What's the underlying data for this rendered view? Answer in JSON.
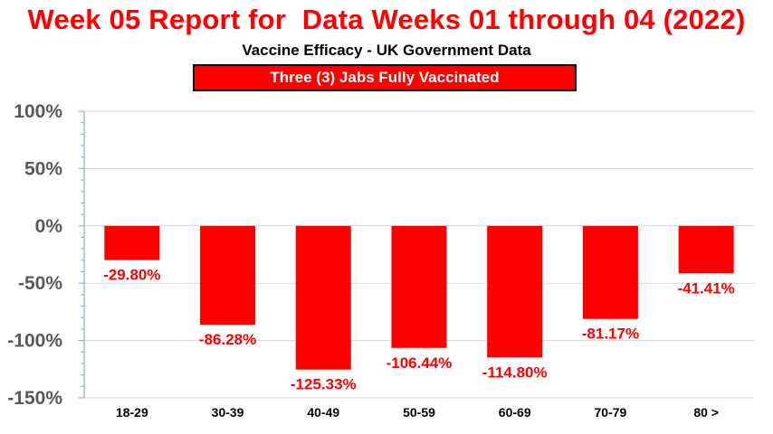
{
  "title": "Week 05 Report for  Data Weeks 01 through 04 (2022)",
  "subtitle": "Vaccine Efficacy - UK Government Data",
  "banner": "Three (3) Jabs Fully Vaccinated",
  "colors": {
    "bar": "#ff0000",
    "label": "#ff0000",
    "title": "#ff0000",
    "grid": "#d9d9d9",
    "axis": "#8eaacb"
  },
  "chart_data": {
    "type": "bar",
    "categories": [
      "18-29",
      "30-39",
      "40-49",
      "50-59",
      "60-69",
      "70-79",
      "80 >"
    ],
    "values": [
      -29.8,
      -86.28,
      -125.33,
      -106.44,
      -114.8,
      -81.17,
      -41.41
    ],
    "data_labels": [
      "-29.80%",
      "-86.28%",
      "-125.33%",
      "-106.44%",
      "-114.80%",
      "-81.17%",
      "-41.41%"
    ],
    "title": "Week 05 Report for  Data Weeks 01 through 04 (2022)",
    "subtitle": "Vaccine Efficacy - UK Government Data",
    "ylim": [
      -150,
      100
    ],
    "yticks": [
      100,
      50,
      0,
      -50,
      -100,
      -150
    ],
    "ytick_labels": [
      "100%",
      "50%",
      "0%",
      "-50%",
      "-100%",
      "-150%"
    ],
    "grid": true,
    "legend": "none"
  }
}
